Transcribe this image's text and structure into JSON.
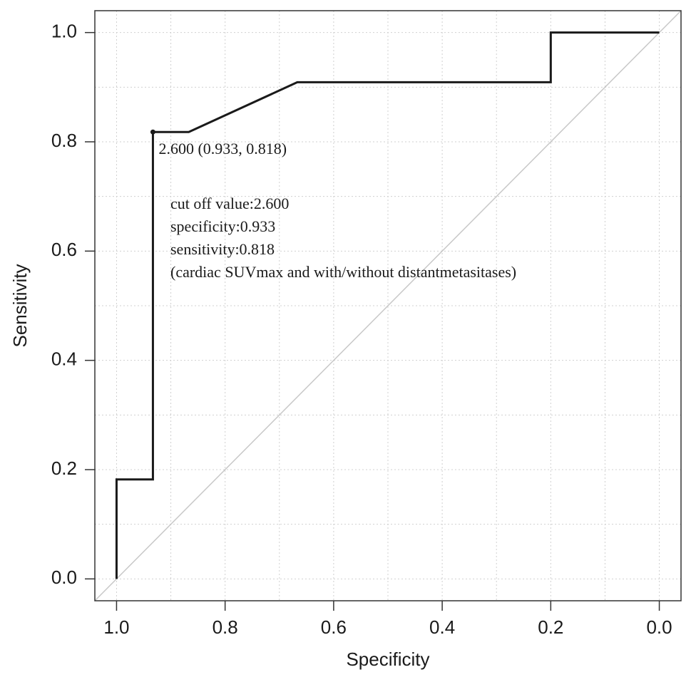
{
  "chart_data": {
    "type": "line",
    "xlabel": "Specificity",
    "ylabel": "Sensitivity",
    "x": [
      1,
      1,
      0.933,
      0.933,
      0.867,
      0.667,
      0.2,
      0.2,
      0
    ],
    "series": [
      {
        "color": "#1a1a1a",
        "values": [
          0,
          0.182,
          0.182,
          0.818,
          0.818,
          0.909,
          0.909,
          1,
          1
        ]
      }
    ],
    "xlim": [
      1.04,
      -0.04
    ],
    "ylim": [
      -0.04,
      1.04
    ],
    "xticks": [
      {
        "value": 1,
        "label": "1.0"
      },
      0.8,
      0.6,
      0.4,
      0.2,
      {
        "value": 0,
        "label": "0.0"
      }
    ],
    "yticks": [
      {
        "value": 0,
        "label": "0.0"
      },
      0.2,
      0.4,
      0.6,
      0.8,
      {
        "value": 1,
        "label": "1.0"
      }
    ],
    "grid": true,
    "minor_grid": true,
    "reference_line": true,
    "reference_color": "#c8c8c8",
    "highlight": {
      "x": 0.933,
      "y": 0.818,
      "label": "2.600 (0.933, 0.818)"
    },
    "annotations": [
      "cut off value:2.600",
      "specificity:0.933",
      "sensitivity:0.818",
      "(cardiac SUVmax and with/without distantmetasitases)"
    ]
  }
}
